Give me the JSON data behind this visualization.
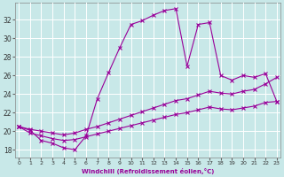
{
  "background_color": "#c8e8e8",
  "grid_color": "#ffffff",
  "line_color": "#990099",
  "xlim_min": -0.3,
  "xlim_max": 23.3,
  "ylim_min": 17.2,
  "ylim_max": 33.8,
  "yticks": [
    18,
    20,
    22,
    24,
    26,
    28,
    30,
    32
  ],
  "xticks": [
    0,
    1,
    2,
    3,
    4,
    5,
    6,
    7,
    8,
    9,
    10,
    11,
    12,
    13,
    14,
    15,
    16,
    17,
    18,
    19,
    20,
    21,
    22,
    23
  ],
  "xlabel": "Windchill (Refroidissement éolien,°C)",
  "hours": [
    0,
    1,
    2,
    3,
    4,
    5,
    6,
    7,
    8,
    9,
    10,
    11,
    12,
    13,
    14,
    15,
    16,
    17,
    18,
    19,
    20,
    21,
    22,
    23
  ],
  "curve1": [
    20.5,
    20.1,
    19.0,
    18.7,
    18.2,
    18.0,
    19.5,
    23.5,
    26.3,
    29.0,
    31.5,
    31.9,
    32.5,
    33.0,
    33.2,
    27.0,
    31.5,
    31.7,
    26.0,
    25.5,
    26.0,
    25.8,
    26.2,
    23.2
  ],
  "curve2": [
    20.5,
    20.2,
    20.0,
    19.8,
    19.6,
    19.8,
    20.2,
    20.5,
    20.9,
    21.3,
    21.7,
    22.1,
    22.5,
    22.9,
    23.3,
    23.5,
    23.9,
    24.3,
    24.1,
    24.0,
    24.3,
    24.5,
    25.1,
    25.8
  ],
  "curve3": [
    20.5,
    19.8,
    19.5,
    19.2,
    19.0,
    19.1,
    19.4,
    19.7,
    20.0,
    20.3,
    20.6,
    20.9,
    21.2,
    21.5,
    21.8,
    22.0,
    22.3,
    22.6,
    22.4,
    22.3,
    22.5,
    22.7,
    23.1,
    23.2
  ]
}
